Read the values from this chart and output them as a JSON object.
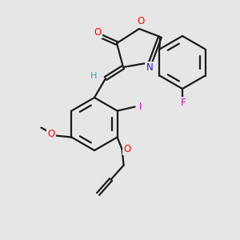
{
  "bg_color": "#e6e6e6",
  "bond_color": "#1a1a1a",
  "atom_colors": {
    "O": "#ff0000",
    "N": "#1a1acc",
    "F": "#cc00cc",
    "I": "#cc00cc",
    "H": "#20b2aa",
    "C": "#1a1a1a"
  },
  "fig_size": [
    3.0,
    3.0
  ],
  "dpi": 100
}
